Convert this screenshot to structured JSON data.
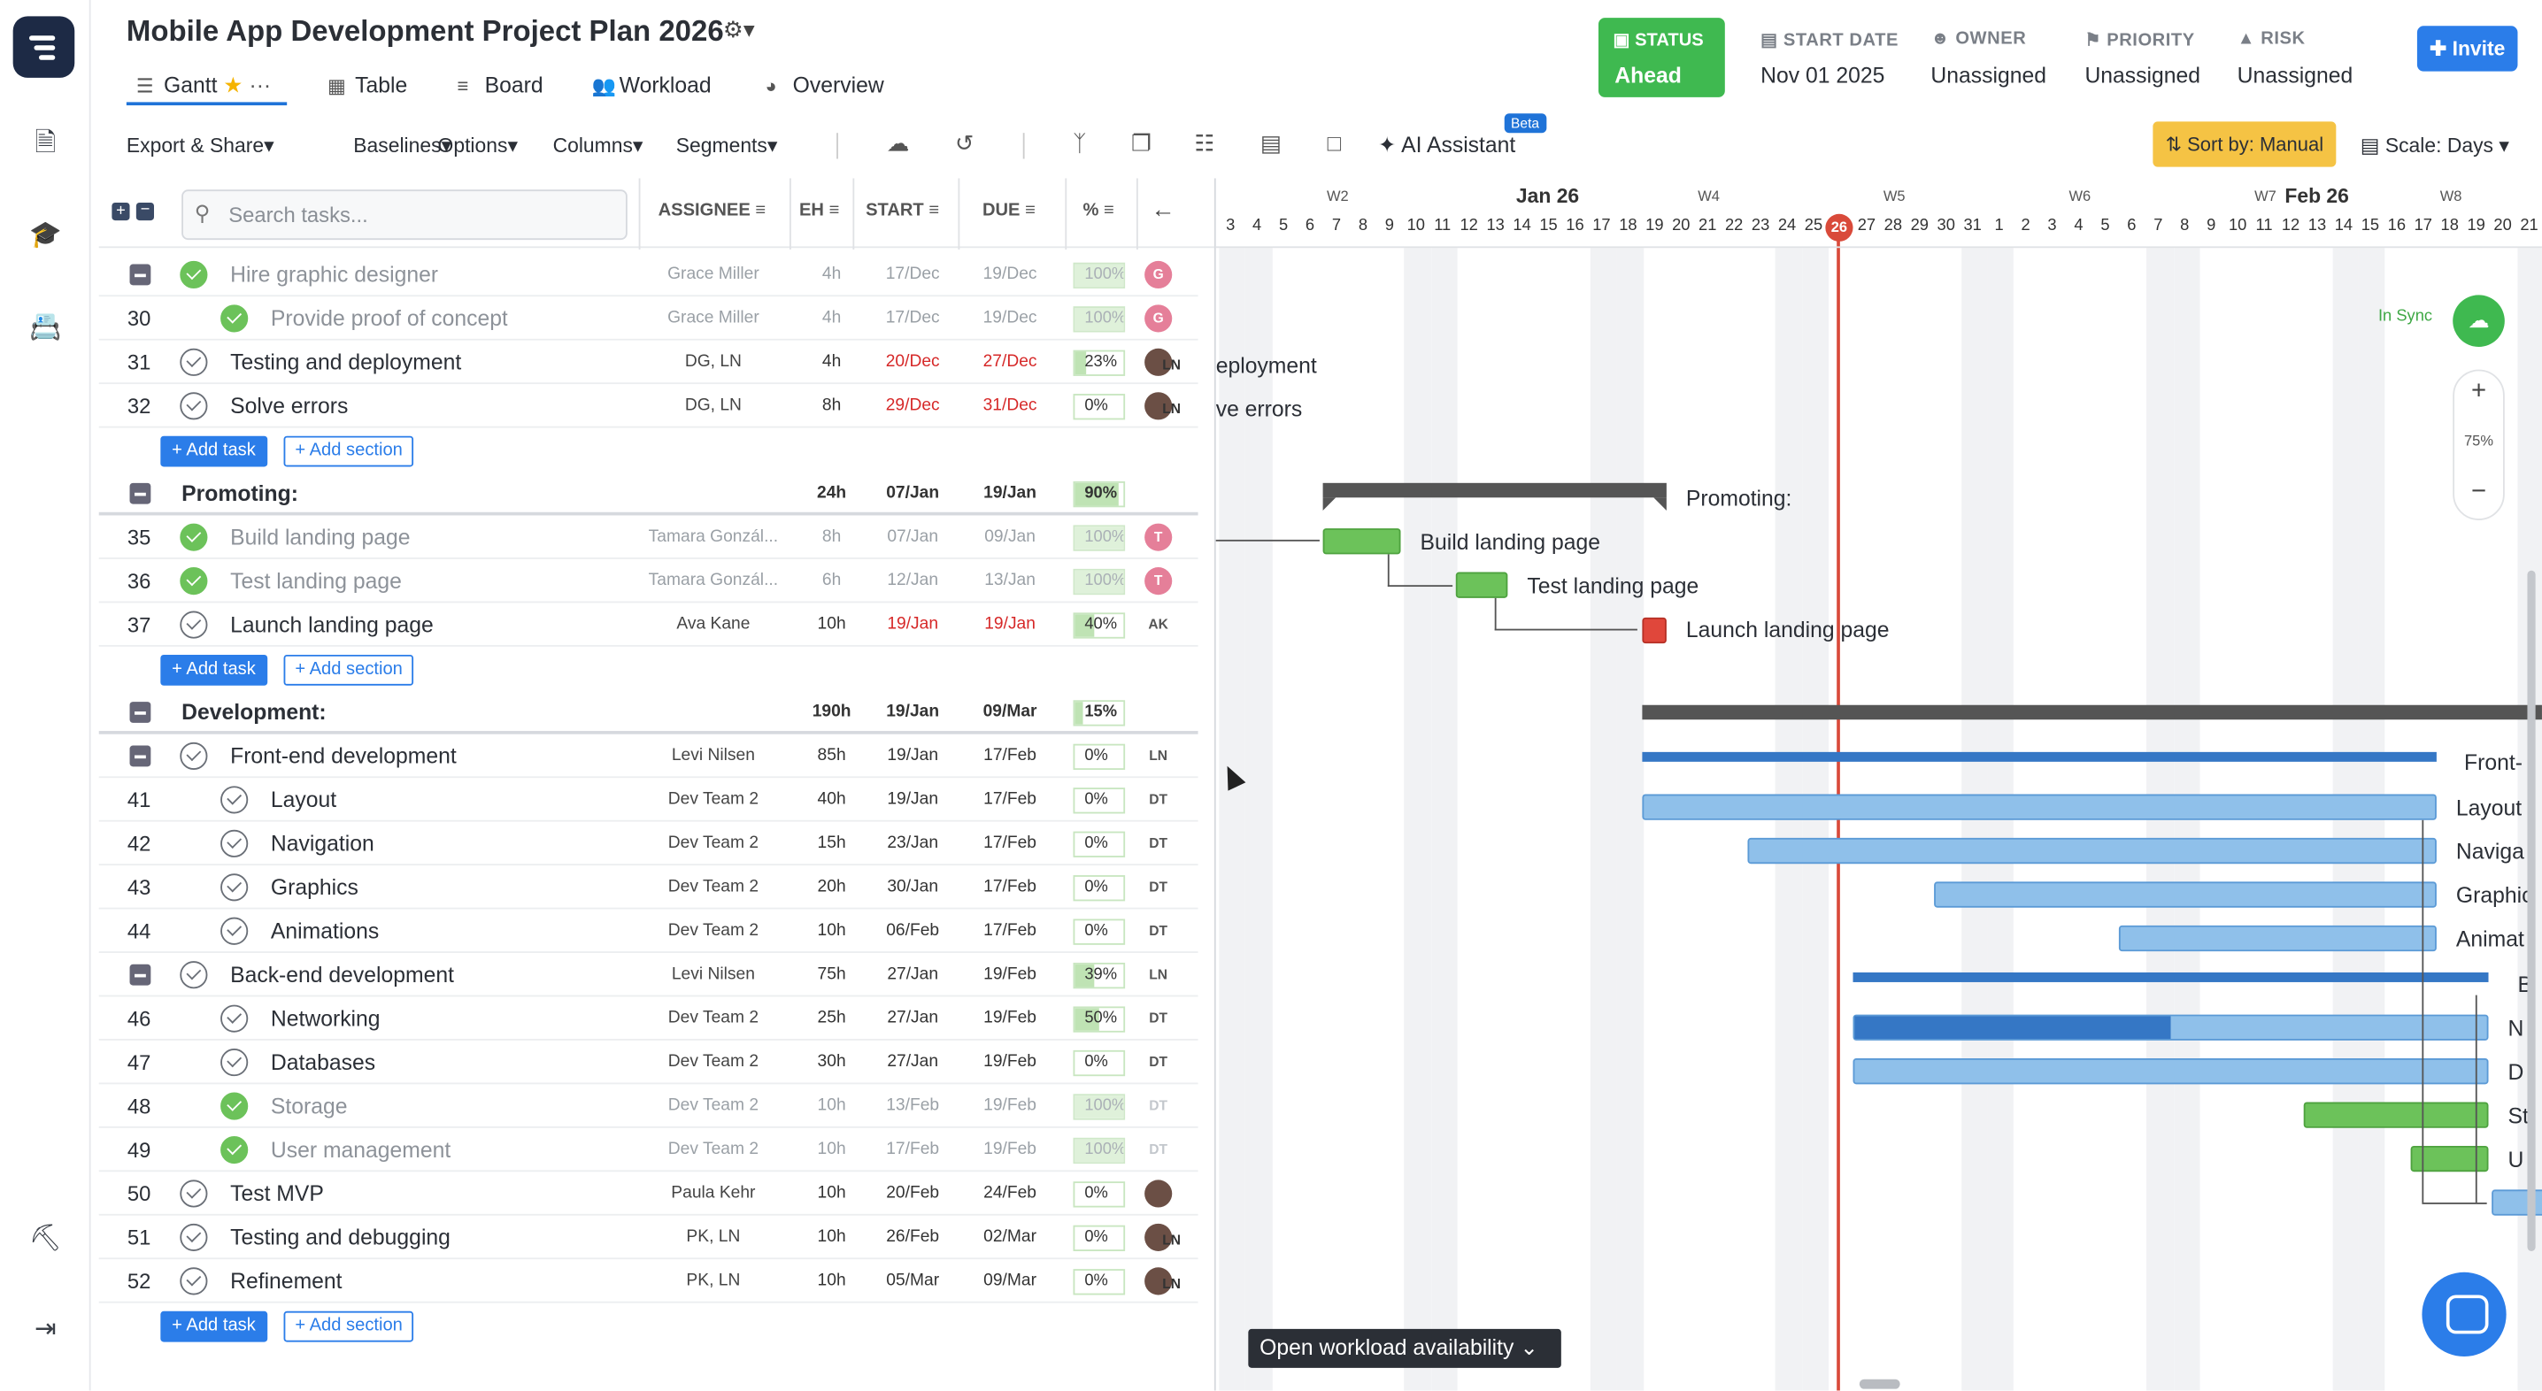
{
  "project": {
    "title": "Mobile App Development Project Plan 2026"
  },
  "tabs": [
    {
      "label": "Gantt"
    },
    {
      "label": "Table"
    },
    {
      "label": "Board"
    },
    {
      "label": "Workload"
    },
    {
      "label": "Overview"
    }
  ],
  "meta": {
    "status_label": "STATUS",
    "status_value": "Ahead",
    "start_label": "START DATE",
    "start_value": "Nov 01 2025",
    "owner_label": "OWNER",
    "owner_value": "Unassigned",
    "priority_label": "PRIORITY",
    "priority_value": "Unassigned",
    "risk_label": "RISK",
    "risk_value": "Unassigned",
    "invite": "Invite"
  },
  "toolbar": {
    "export": "Export & Share",
    "baselines": "Baselines",
    "options": "Options",
    "columns": "Columns",
    "segments": "Segments",
    "ai": "AI Assistant",
    "beta": "Beta",
    "sort": "Sort by: Manual",
    "scale": "Scale: Days"
  },
  "table": {
    "search_placeholder": "Search tasks...",
    "headers": {
      "assignee": "ASSIGNEE",
      "eh": "EH",
      "start": "START",
      "due": "DUE",
      "pct": "%"
    },
    "add_task": "+ Add task",
    "add_section": "+ Add section",
    "rows": [
      {
        "num": "",
        "name": "Hire graphic designer",
        "done": true,
        "indent": 1,
        "collapse": true,
        "assignee": "Grace Miller",
        "eh": "4h",
        "start": "17/Dec",
        "due": "19/Dec",
        "pct": "100%",
        "pv": 100,
        "avatar": "G",
        "av": "pink"
      },
      {
        "num": "30",
        "name": "Provide proof of concept",
        "done": true,
        "indent": 2,
        "assignee": "Grace Miller",
        "eh": "4h",
        "start": "17/Dec",
        "due": "19/Dec",
        "pct": "100%",
        "pv": 100,
        "avatar": "G",
        "av": "pink"
      },
      {
        "num": "31",
        "name": "Testing and deployment",
        "done": false,
        "indent": 1,
        "assignee": "DG, LN",
        "eh": "4h",
        "start": "20/Dec",
        "due": "27/Dec",
        "red": true,
        "pct": "23%",
        "pv": 23,
        "avatar": "",
        "av": "photo",
        "avatar2": "LN"
      },
      {
        "num": "32",
        "name": "Solve errors",
        "done": false,
        "indent": 1,
        "assignee": "DG, LN",
        "eh": "8h",
        "start": "29/Dec",
        "due": "31/Dec",
        "red": true,
        "pct": "0%",
        "pv": 0,
        "avatar": "",
        "av": "photo",
        "avatar2": "LN"
      },
      {
        "type": "add"
      },
      {
        "type": "section",
        "name": "Promoting:",
        "eh": "24h",
        "start": "07/Jan",
        "due": "19/Jan",
        "pct": "90%",
        "pv": 90
      },
      {
        "num": "35",
        "name": "Build landing page",
        "done": true,
        "indent": 1,
        "assignee": "Tamara Gonzál...",
        "eh": "8h",
        "start": "07/Jan",
        "due": "09/Jan",
        "pct": "100%",
        "pv": 100,
        "avatar": "T",
        "av": "pink"
      },
      {
        "num": "36",
        "name": "Test landing page",
        "done": true,
        "indent": 1,
        "assignee": "Tamara Gonzál...",
        "eh": "6h",
        "start": "12/Jan",
        "due": "13/Jan",
        "pct": "100%",
        "pv": 100,
        "avatar": "T",
        "av": "pink"
      },
      {
        "num": "37",
        "name": "Launch landing page",
        "done": false,
        "indent": 1,
        "assignee": "Ava Kane",
        "eh": "10h",
        "start": "19/Jan",
        "due": "19/Jan",
        "red": true,
        "pct": "40%",
        "pv": 40,
        "avatar": "AK",
        "av": "txt"
      },
      {
        "type": "add"
      },
      {
        "type": "section",
        "name": "Development:",
        "eh": "190h",
        "start": "19/Jan",
        "due": "09/Mar",
        "pct": "15%",
        "pv": 15
      },
      {
        "num": "",
        "name": "Front-end development",
        "done": false,
        "indent": 1,
        "collapse": true,
        "assignee": "Levi Nilsen",
        "eh": "85h",
        "start": "19/Jan",
        "due": "17/Feb",
        "pct": "0%",
        "pv": 0,
        "avatar": "LN",
        "av": "txt"
      },
      {
        "num": "41",
        "name": "Layout",
        "done": false,
        "indent": 2,
        "assignee": "Dev Team 2",
        "eh": "40h",
        "start": "19/Jan",
        "due": "17/Feb",
        "pct": "0%",
        "pv": 0,
        "avatar": "DT",
        "av": "txt"
      },
      {
        "num": "42",
        "name": "Navigation",
        "done": false,
        "indent": 2,
        "assignee": "Dev Team 2",
        "eh": "15h",
        "start": "23/Jan",
        "due": "17/Feb",
        "pct": "0%",
        "pv": 0,
        "avatar": "DT",
        "av": "txt"
      },
      {
        "num": "43",
        "name": "Graphics",
        "done": false,
        "indent": 2,
        "assignee": "Dev Team 2",
        "eh": "20h",
        "start": "30/Jan",
        "due": "17/Feb",
        "pct": "0%",
        "pv": 0,
        "avatar": "DT",
        "av": "txt"
      },
      {
        "num": "44",
        "name": "Animations",
        "done": false,
        "indent": 2,
        "assignee": "Dev Team 2",
        "eh": "10h",
        "start": "06/Feb",
        "due": "17/Feb",
        "pct": "0%",
        "pv": 0,
        "avatar": "DT",
        "av": "txt"
      },
      {
        "num": "",
        "name": "Back-end development",
        "done": false,
        "indent": 1,
        "collapse": true,
        "assignee": "Levi Nilsen",
        "eh": "75h",
        "start": "27/Jan",
        "due": "19/Feb",
        "pct": "39%",
        "pv": 39,
        "avatar": "LN",
        "av": "txt"
      },
      {
        "num": "46",
        "name": "Networking",
        "done": false,
        "indent": 2,
        "assignee": "Dev Team 2",
        "eh": "25h",
        "start": "27/Jan",
        "due": "19/Feb",
        "pct": "50%",
        "pv": 50,
        "avatar": "DT",
        "av": "txt"
      },
      {
        "num": "47",
        "name": "Databases",
        "done": false,
        "indent": 2,
        "assignee": "Dev Team 2",
        "eh": "30h",
        "start": "27/Jan",
        "due": "19/Feb",
        "pct": "0%",
        "pv": 0,
        "avatar": "DT",
        "av": "txt"
      },
      {
        "num": "48",
        "name": "Storage",
        "done": true,
        "indent": 2,
        "assignee": "Dev Team 2",
        "eh": "10h",
        "start": "13/Feb",
        "due": "19/Feb",
        "pct": "100%",
        "pv": 100,
        "avatar": "DT",
        "av": "ghost"
      },
      {
        "num": "49",
        "name": "User management",
        "done": true,
        "indent": 2,
        "assignee": "Dev Team 2",
        "eh": "10h",
        "start": "17/Feb",
        "due": "19/Feb",
        "pct": "100%",
        "pv": 100,
        "avatar": "DT",
        "av": "ghost"
      },
      {
        "num": "50",
        "name": "Test MVP",
        "done": false,
        "indent": 1,
        "assignee": "Paula Kehr",
        "eh": "10h",
        "start": "20/Feb",
        "due": "24/Feb",
        "pct": "0%",
        "pv": 0,
        "avatar": "",
        "av": "photo"
      },
      {
        "num": "51",
        "name": "Testing and debugging",
        "done": false,
        "indent": 1,
        "assignee": "PK, LN",
        "eh": "10h",
        "start": "26/Feb",
        "due": "02/Mar",
        "pct": "0%",
        "pv": 0,
        "avatar": "",
        "av": "photo",
        "avatar2": "LN"
      },
      {
        "num": "52",
        "name": "Refinement",
        "done": false,
        "indent": 1,
        "assignee": "PK, LN",
        "eh": "10h",
        "start": "05/Mar",
        "due": "09/Mar",
        "pct": "0%",
        "pv": 0,
        "avatar": "",
        "av": "photo",
        "avatar2": "LN"
      },
      {
        "type": "add"
      }
    ]
  },
  "timeline": {
    "days": [
      "3",
      "4",
      "5",
      "6",
      "7",
      "8",
      "9",
      "10",
      "11",
      "12",
      "13",
      "14",
      "15",
      "16",
      "17",
      "18",
      "19",
      "20",
      "21",
      "22",
      "23",
      "24",
      "25",
      "26",
      "27",
      "28",
      "29",
      "30",
      "31",
      "1",
      "2",
      "3",
      "4",
      "5",
      "6",
      "7",
      "8",
      "9",
      "10",
      "11",
      "12",
      "13",
      "14",
      "15",
      "16",
      "17",
      "18",
      "19",
      "20",
      "21"
    ],
    "today": "26",
    "weeks": [
      {
        "label": "W2",
        "day": 4
      },
      {
        "label": "W4",
        "day": 18
      },
      {
        "label": "W5",
        "day": 25
      },
      {
        "label": "W6",
        "day": 32
      },
      {
        "label": "W7",
        "day": 39
      },
      {
        "label": "W8",
        "day": 46
      }
    ],
    "months": [
      {
        "label": "Jan 26",
        "day": 12
      },
      {
        "label": "Feb 26",
        "day": 41
      }
    ],
    "bar_labels": {
      "deploy": "eployment",
      "errors": "ve errors",
      "promoting": "Promoting:",
      "build": "Build landing page",
      "test": "Test landing page",
      "launch": "Launch landing page",
      "frontend": "Front-",
      "layout": "Layout",
      "nav": "Naviga",
      "graphics": "Graphic",
      "anim": "Animat",
      "backend": "B",
      "networking": "N",
      "databases": "D",
      "storage": "St",
      "users": "U"
    },
    "in_sync": "In Sync",
    "zoom": "75%",
    "workload": "Open workload availability"
  },
  "colors": {
    "accent": "#2b7de9",
    "status": "#3fb950",
    "today": "#d94a3a",
    "sort": "#f5c344"
  }
}
